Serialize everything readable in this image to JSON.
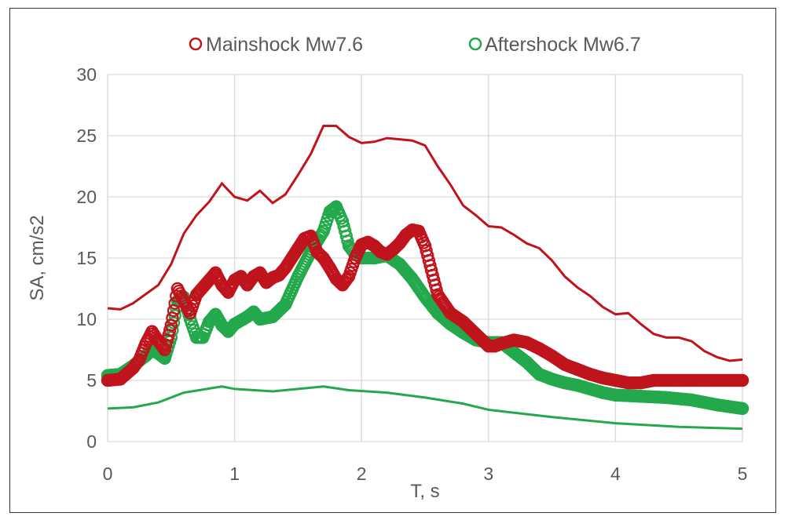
{
  "chart_data": {
    "type": "scatter",
    "title": "",
    "xlabel": "T, s",
    "ylabel": "SA, cm/s2",
    "xlim": [
      0,
      5
    ],
    "ylim": [
      0,
      30
    ],
    "xticks": [
      "0",
      "1",
      "2",
      "3",
      "4",
      "5"
    ],
    "yticks": [
      "0",
      "5",
      "10",
      "15",
      "20",
      "25",
      "30"
    ],
    "grid": true,
    "legend_position": "top",
    "colors": {
      "red": "#c0141c",
      "green": "#23a94b"
    },
    "series": [
      {
        "name": "Mainshock Mw7.6",
        "kind": "markers",
        "color": "red",
        "x": [
          0,
          0.1,
          0.2,
          0.25,
          0.3,
          0.35,
          0.4,
          0.45,
          0.5,
          0.55,
          0.6,
          0.65,
          0.7,
          0.8,
          0.85,
          0.9,
          0.95,
          1.0,
          1.05,
          1.1,
          1.15,
          1.2,
          1.25,
          1.3,
          1.35,
          1.4,
          1.5,
          1.55,
          1.6,
          1.65,
          1.7,
          1.75,
          1.8,
          1.85,
          1.9,
          1.95,
          2.0,
          2.05,
          2.1,
          2.15,
          2.2,
          2.25,
          2.3,
          2.35,
          2.4,
          2.45,
          2.5,
          2.55,
          2.6,
          2.7,
          2.8,
          2.9,
          3.0,
          3.05,
          3.1,
          3.2,
          3.3,
          3.4,
          3.5,
          3.6,
          3.7,
          3.8,
          3.9,
          4.0,
          4.1,
          4.2,
          4.3,
          4.5,
          4.7,
          5.0
        ],
        "y": [
          5.0,
          5.1,
          6.0,
          6.7,
          8.0,
          9.0,
          8.2,
          7.5,
          9.5,
          12.5,
          11.5,
          10.5,
          12.0,
          13.2,
          13.8,
          12.8,
          12.2,
          13.2,
          13.5,
          12.8,
          13.5,
          13.8,
          13.0,
          13.4,
          13.6,
          14.2,
          15.8,
          16.6,
          16.8,
          15.5,
          15.0,
          14.2,
          13.3,
          12.8,
          13.5,
          15.0,
          16.1,
          16.3,
          16.0,
          15.5,
          15.3,
          15.7,
          16.2,
          16.9,
          17.3,
          17.2,
          16.0,
          14.0,
          12.0,
          10.5,
          9.8,
          8.8,
          7.8,
          7.8,
          8.0,
          8.3,
          8.1,
          7.6,
          7.0,
          6.3,
          5.9,
          5.5,
          5.2,
          5.0,
          4.8,
          4.8,
          5.0,
          5.0,
          5.0,
          5.0
        ]
      },
      {
        "name": "Aftershock Mw6.7",
        "kind": "markers",
        "color": "green",
        "x": [
          0,
          0.1,
          0.2,
          0.3,
          0.35,
          0.4,
          0.45,
          0.5,
          0.55,
          0.6,
          0.65,
          0.7,
          0.75,
          0.8,
          0.85,
          0.9,
          0.95,
          1.0,
          1.1,
          1.15,
          1.2,
          1.3,
          1.4,
          1.5,
          1.6,
          1.7,
          1.75,
          1.8,
          1.85,
          1.9,
          1.95,
          2.0,
          2.1,
          2.2,
          2.3,
          2.4,
          2.5,
          2.6,
          2.7,
          2.8,
          2.9,
          3.0,
          3.1,
          3.2,
          3.3,
          3.4,
          3.5,
          3.6,
          3.7,
          3.8,
          3.9,
          4.0,
          4.2,
          4.4,
          4.6,
          4.8,
          5.0
        ],
        "y": [
          5.4,
          5.5,
          6.2,
          7.0,
          7.5,
          7.2,
          6.8,
          8.5,
          11.5,
          11.8,
          10.0,
          8.5,
          8.5,
          9.8,
          10.4,
          9.5,
          9.0,
          9.6,
          10.2,
          10.6,
          10.0,
          10.2,
          11.2,
          13.5,
          15.5,
          17.2,
          18.8,
          19.2,
          18.0,
          16.0,
          15.3,
          15.0,
          15.0,
          15.2,
          14.5,
          13.3,
          11.8,
          10.5,
          9.6,
          8.9,
          8.3,
          8.1,
          8.1,
          7.3,
          6.5,
          5.5,
          5.1,
          4.8,
          4.6,
          4.3,
          4.0,
          3.8,
          3.7,
          3.6,
          3.4,
          3.0,
          2.7
        ]
      },
      {
        "name": "",
        "kind": "line",
        "color": "red",
        "x": [
          0,
          0.1,
          0.2,
          0.4,
          0.5,
          0.6,
          0.7,
          0.8,
          0.9,
          1.0,
          1.1,
          1.2,
          1.3,
          1.4,
          1.5,
          1.6,
          1.7,
          1.8,
          1.9,
          2.0,
          2.1,
          2.2,
          2.3,
          2.4,
          2.5,
          2.6,
          2.7,
          2.8,
          2.9,
          3.0,
          3.1,
          3.2,
          3.3,
          3.4,
          3.5,
          3.6,
          3.7,
          3.8,
          3.9,
          4.0,
          4.1,
          4.2,
          4.3,
          4.4,
          4.5,
          4.6,
          4.7,
          4.8,
          4.9,
          5.0
        ],
        "y": [
          10.9,
          10.8,
          11.3,
          12.8,
          14.5,
          17.0,
          18.5,
          19.6,
          21.1,
          20.0,
          19.7,
          20.5,
          19.5,
          20.2,
          21.8,
          23.5,
          25.8,
          25.8,
          24.9,
          24.4,
          24.5,
          24.8,
          24.7,
          24.6,
          24.2,
          22.5,
          21.0,
          19.3,
          18.5,
          17.6,
          17.5,
          16.9,
          16.2,
          15.8,
          14.8,
          13.5,
          12.6,
          11.9,
          11.0,
          10.4,
          10.5,
          9.6,
          8.8,
          8.5,
          8.5,
          8.2,
          7.4,
          6.9,
          6.6,
          6.7
        ]
      },
      {
        "name": "",
        "kind": "line",
        "color": "green",
        "x": [
          0,
          0.2,
          0.4,
          0.6,
          0.9,
          1.0,
          1.3,
          1.5,
          1.7,
          1.9,
          2.2,
          2.5,
          2.8,
          3.0,
          3.5,
          4.0,
          4.5,
          5.0
        ],
        "y": [
          2.7,
          2.8,
          3.2,
          4.0,
          4.5,
          4.3,
          4.1,
          4.3,
          4.5,
          4.2,
          4.0,
          3.6,
          3.1,
          2.6,
          2.0,
          1.5,
          1.2,
          1.05
        ]
      }
    ]
  }
}
